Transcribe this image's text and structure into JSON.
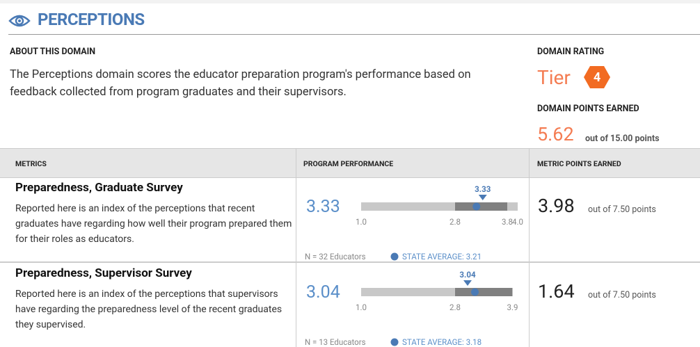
{
  "header": {
    "title": "PERCEPTIONS"
  },
  "about": {
    "heading": "ABOUT THIS DOMAIN",
    "text": "The Perceptions domain scores the educator preparation program's performance based on feedback collected from program graduates and their supervisors."
  },
  "rating": {
    "heading": "DOMAIN RATING",
    "tier_label": "Tier",
    "tier": 4,
    "points_heading": "DOMAIN POINTS EARNED",
    "points": 5.62,
    "points_note": "out of 15.00 points"
  },
  "table": {
    "columns": [
      "METRICS",
      "PROGRAM PERFORMANCE",
      "METRIC POINTS EARNED"
    ],
    "rows": [
      {
        "name": "Preparedness, Graduate Survey",
        "description": "Reported here is an index of the perceptions that recent graduates have regarding how well their program prepared them for their roles as educators.",
        "score": 3.33,
        "ticks": [
          {
            "value": 1,
            "label": "1.0"
          },
          2.8,
          3.8,
          {
            "value": 4,
            "label": "4.0"
          }
        ],
        "n": "N = 32 Educators",
        "state_average_label": "STATE AVERAGE:",
        "state_average": 3.21,
        "points": 3.98,
        "points_note": "out of 7.50 points"
      },
      {
        "name": "Preparedness, Supervisor Survey",
        "description": "Reported here is an index of the perceptions that supervisors have regarding the preparedness level of the recent graduates they supervised.",
        "score": 3.04,
        "ticks": [
          {
            "value": 1,
            "label": "1.0"
          },
          2.8,
          3.9
        ],
        "n": "N = 13 Educators",
        "state_average_label": "STATE AVERAGE:",
        "state_average": 3.18,
        "points": 1.64,
        "points_note": "out of 7.50 points"
      }
    ]
  }
}
